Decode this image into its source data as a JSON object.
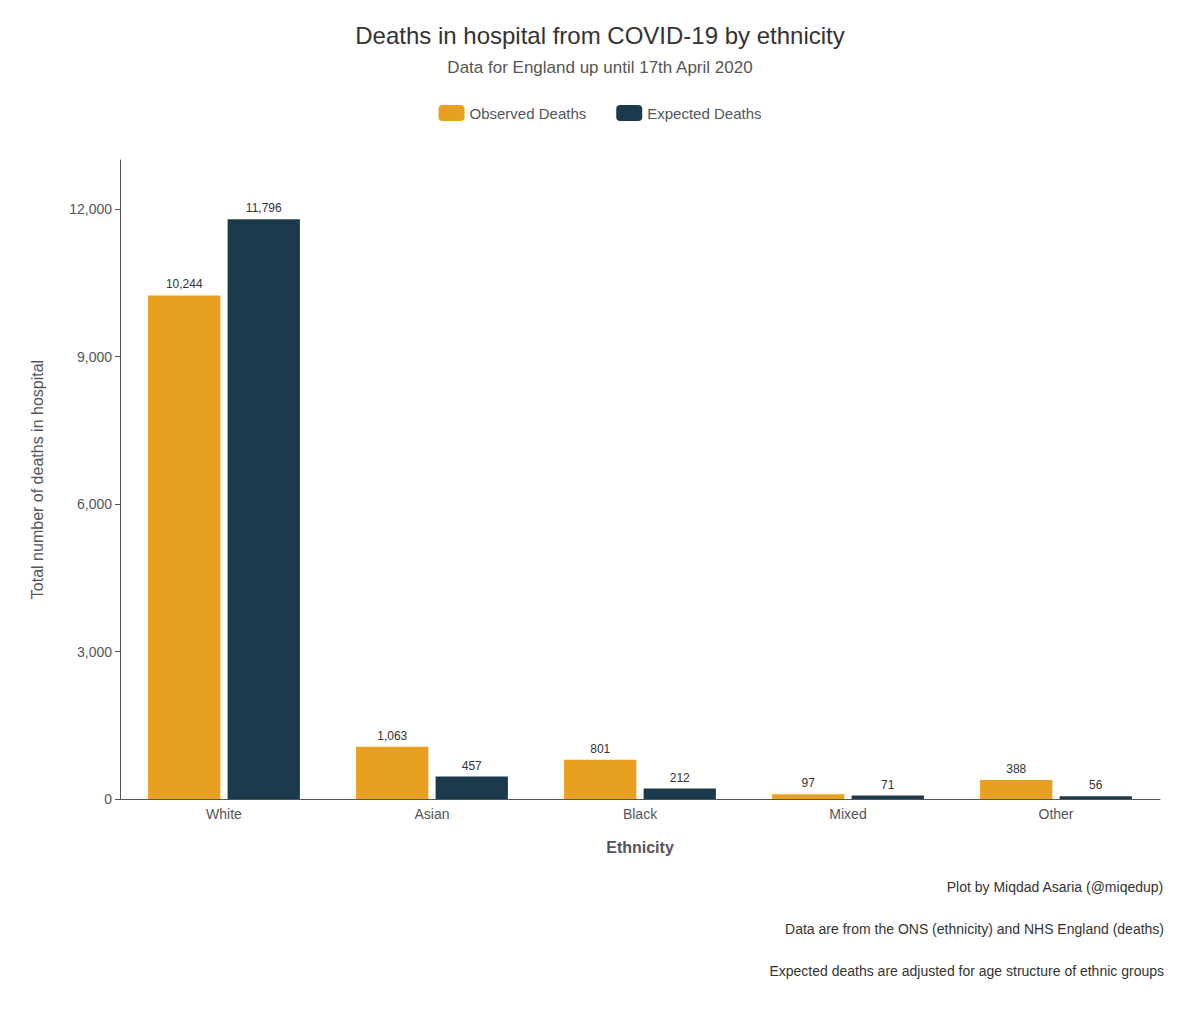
{
  "chart_data": {
    "type": "bar",
    "title": "Deaths in hospital from COVID-19 by ethnicity",
    "subtitle": "Data for England up until 17th April 2020",
    "xlabel": "Ethnicity",
    "ylabel": "Total number of deaths in hospital",
    "categories": [
      "White",
      "Asian",
      "Black",
      "Mixed",
      "Other"
    ],
    "series": [
      {
        "name": "Observed Deaths",
        "color": "#E8A020",
        "values": [
          10244,
          1063,
          801,
          97,
          388
        ],
        "value_labels": [
          "10,244",
          "1,063",
          "801",
          "97",
          "388"
        ]
      },
      {
        "name": "Expected Deaths",
        "color": "#1B3A4B",
        "values": [
          11796,
          457,
          212,
          71,
          56
        ],
        "value_labels": [
          "11,796",
          "457",
          "212",
          "71",
          "56"
        ]
      }
    ],
    "ylim": [
      0,
      13000
    ],
    "yticks": [
      0,
      {
        "value": 3000,
        "label": "3,000"
      },
      {
        "value": 6000,
        "label": "6,000"
      },
      {
        "value": 9000,
        "label": "9,000"
      },
      {
        "value": 12000,
        "label": "12,000"
      }
    ],
    "grid": false,
    "legend": "top",
    "data_labels": true,
    "annotations": [
      "Plot by Miqdad Asaria (@miqedup)",
      "Data are from the ONS (ethnicity) and NHS England (deaths)",
      "Expected deaths are adjusted for age structure of ethnic groups"
    ]
  }
}
